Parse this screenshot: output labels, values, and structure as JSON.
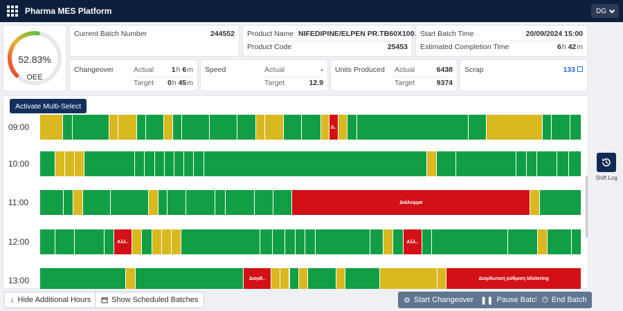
{
  "app": {
    "title": "Pharma MES Platform",
    "user_initials": "DG"
  },
  "oee": {
    "value": "52.83%",
    "label": "OEE",
    "fraction": 0.5283
  },
  "batch": {
    "current_batch_label": "Current Batch Number",
    "current_batch_value": "244552",
    "product_name_label": "Product Name",
    "product_name_value": "NIFEDIPINE/ELPEN PR.TB60X100...",
    "product_code_label": "Product Code",
    "product_code_value": "25453",
    "start_time_label": "Start Batch Time",
    "start_time_value": "20/09/2024 15:00",
    "est_completion_label": "Estimated Completion Time",
    "est_h": "6",
    "est_h_unit": "h",
    "est_m": "42",
    "est_m_unit": "m"
  },
  "changeover": {
    "label": "Changeover",
    "actual_label": "Actual",
    "target_label": "Target",
    "actual_h": "1",
    "actual_m": "6",
    "target_h": "0",
    "target_m": "45",
    "h_unit": "h",
    "m_unit": "m"
  },
  "speed": {
    "label": "Speed",
    "actual_label": "Actual",
    "actual_value": "-",
    "target_label": "Target",
    "target_value": "12.9"
  },
  "units": {
    "label": "Units Produced",
    "actual_label": "Actual",
    "actual_value": "6438",
    "target_label": "Target",
    "target_value": "9374"
  },
  "scrap": {
    "label": "Scrap",
    "value": "133"
  },
  "timeline": {
    "multi_select_label": "Activate Multi-Select",
    "hours": [
      {
        "label": "09:00",
        "segments": [
          {
            "s": "y",
            "w": 4.3
          },
          {
            "s": "g",
            "w": 1.8
          },
          {
            "s": "g",
            "w": 6.9
          },
          {
            "s": "y",
            "w": 1.7
          },
          {
            "s": "y",
            "w": 3.4
          },
          {
            "s": "g",
            "w": 1.7
          },
          {
            "s": "g",
            "w": 3.4
          },
          {
            "s": "y",
            "w": 1.7
          },
          {
            "s": "g",
            "w": 1.7
          },
          {
            "s": "g",
            "w": 5.2
          },
          {
            "s": "g",
            "w": 5.2
          },
          {
            "s": "g",
            "w": 3.4
          },
          {
            "s": "y",
            "w": 1.7
          },
          {
            "s": "y",
            "w": 3.5
          },
          {
            "s": "g",
            "w": 3.4
          },
          {
            "s": "g",
            "w": 3.6
          },
          {
            "s": "y",
            "w": 1.6
          },
          {
            "s": "r",
            "w": 1.7,
            "t": "Δ.."
          },
          {
            "s": "y",
            "w": 1.7
          },
          {
            "s": "g",
            "w": 1.8
          },
          {
            "s": "g",
            "w": 20.8
          },
          {
            "s": "g",
            "w": 3.5
          },
          {
            "s": "y",
            "w": 10.4
          },
          {
            "s": "g",
            "w": 1.7
          },
          {
            "s": "g",
            "w": 3.5
          },
          {
            "s": "g",
            "w": 2.1
          }
        ]
      },
      {
        "label": "10:00",
        "segments": [
          {
            "s": "g",
            "w": 2.6
          },
          {
            "s": "y",
            "w": 1.7
          },
          {
            "s": "y",
            "w": 1.7
          },
          {
            "s": "y",
            "w": 1.7
          },
          {
            "s": "g",
            "w": 8.7
          },
          {
            "s": "g",
            "w": 1.7
          },
          {
            "s": "g",
            "w": 1.7
          },
          {
            "s": "g",
            "w": 1.7
          },
          {
            "s": "g",
            "w": 1.7
          },
          {
            "s": "g",
            "w": 1.7
          },
          {
            "s": "g",
            "w": 1.7
          },
          {
            "s": "g",
            "w": 1.7
          },
          {
            "s": "g",
            "w": 38.5
          },
          {
            "s": "y",
            "w": 1.7
          },
          {
            "s": "g",
            "w": 3.4
          },
          {
            "s": "g",
            "w": 10.4
          },
          {
            "s": "g",
            "w": 1.7
          },
          {
            "s": "g",
            "w": 1.8
          },
          {
            "s": "g",
            "w": 3.5
          },
          {
            "s": "g",
            "w": 2.1
          },
          {
            "s": "g",
            "w": 2.1
          }
        ]
      },
      {
        "label": "11:00",
        "segments": [
          {
            "s": "g",
            "w": 4.3
          },
          {
            "s": "g",
            "w": 1.8
          },
          {
            "s": "y",
            "w": 1.7
          },
          {
            "s": "g",
            "w": 5.1
          },
          {
            "s": "g",
            "w": 6.9
          },
          {
            "s": "y",
            "w": 1.7
          },
          {
            "s": "g",
            "w": 1.7
          },
          {
            "s": "g",
            "w": 3.4
          },
          {
            "s": "g",
            "w": 5.3
          },
          {
            "s": "g",
            "w": 1.8
          },
          {
            "s": "g",
            "w": 5.3
          },
          {
            "s": "g",
            "w": 3.5
          },
          {
            "s": "g",
            "w": 3.4
          },
          {
            "s": "r",
            "w": 43.3,
            "t": "Διάλειμμα"
          },
          {
            "s": "y",
            "w": 1.8
          },
          {
            "s": "g",
            "w": 7.5
          }
        ]
      },
      {
        "label": "12:00",
        "segments": [
          {
            "s": "g",
            "w": 2.6
          },
          {
            "s": "g",
            "w": 3.4
          },
          {
            "s": "g",
            "w": 5.2
          },
          {
            "s": "g",
            "w": 1.7
          },
          {
            "s": "r",
            "w": 3.1,
            "t": "Αλλ.."
          },
          {
            "s": "y",
            "w": 1.7
          },
          {
            "s": "g",
            "w": 1.8
          },
          {
            "s": "y",
            "w": 1.7
          },
          {
            "s": "y",
            "w": 1.7
          },
          {
            "s": "y",
            "w": 1.7
          },
          {
            "s": "g",
            "w": 13.7
          },
          {
            "s": "g",
            "w": 2.2
          },
          {
            "s": "g",
            "w": 2.2
          },
          {
            "s": "g",
            "w": 1.7
          },
          {
            "s": "g",
            "w": 1.7
          },
          {
            "s": "g",
            "w": 1.8
          },
          {
            "s": "g",
            "w": 9.6
          },
          {
            "s": "g",
            "w": 2.2
          },
          {
            "s": "y",
            "w": 1.7
          },
          {
            "s": "g",
            "w": 1.8
          },
          {
            "s": "r",
            "w": 3.3,
            "t": "Αλλ.."
          },
          {
            "s": "g",
            "w": 1.7
          },
          {
            "s": "g",
            "w": 13.2
          },
          {
            "s": "g",
            "w": 5.2
          },
          {
            "s": "y",
            "w": 1.7
          },
          {
            "s": "g",
            "w": 4.2
          },
          {
            "s": "g",
            "w": 1.7
          }
        ]
      },
      {
        "label": "13:00",
        "segments": [
          {
            "s": "g",
            "w": 15.9
          },
          {
            "s": "y",
            "w": 1.8
          },
          {
            "s": "g",
            "w": 19.9
          },
          {
            "s": "r",
            "w": 5.1,
            "t": "Διορθ.."
          },
          {
            "s": "y",
            "w": 1.7
          },
          {
            "s": "y",
            "w": 1.7
          },
          {
            "s": "g",
            "w": 1.7
          },
          {
            "s": "y",
            "w": 1.7
          },
          {
            "s": "g",
            "w": 5.2
          },
          {
            "s": "y",
            "w": 1.7
          },
          {
            "s": "g",
            "w": 6.4
          },
          {
            "s": "y",
            "w": 10.6
          },
          {
            "s": "y",
            "w": 1.7
          },
          {
            "s": "r",
            "w": 24.9,
            "t": "Διορθωτική ρύθμιση blistering"
          }
        ]
      }
    ]
  },
  "shift_log": {
    "label": "Shift Log"
  },
  "bottom": {
    "hide_hours": "Hide Additional Hours",
    "show_batches": "Show Scheduled Batches",
    "start_changeover": "Start Changeover",
    "pause_batch": "Pause Batch",
    "end_batch": "End Batch"
  },
  "colors": {
    "green": "#129e45",
    "yellow": "#d9b820",
    "red": "#d21016",
    "header": "#0e1f3b"
  }
}
